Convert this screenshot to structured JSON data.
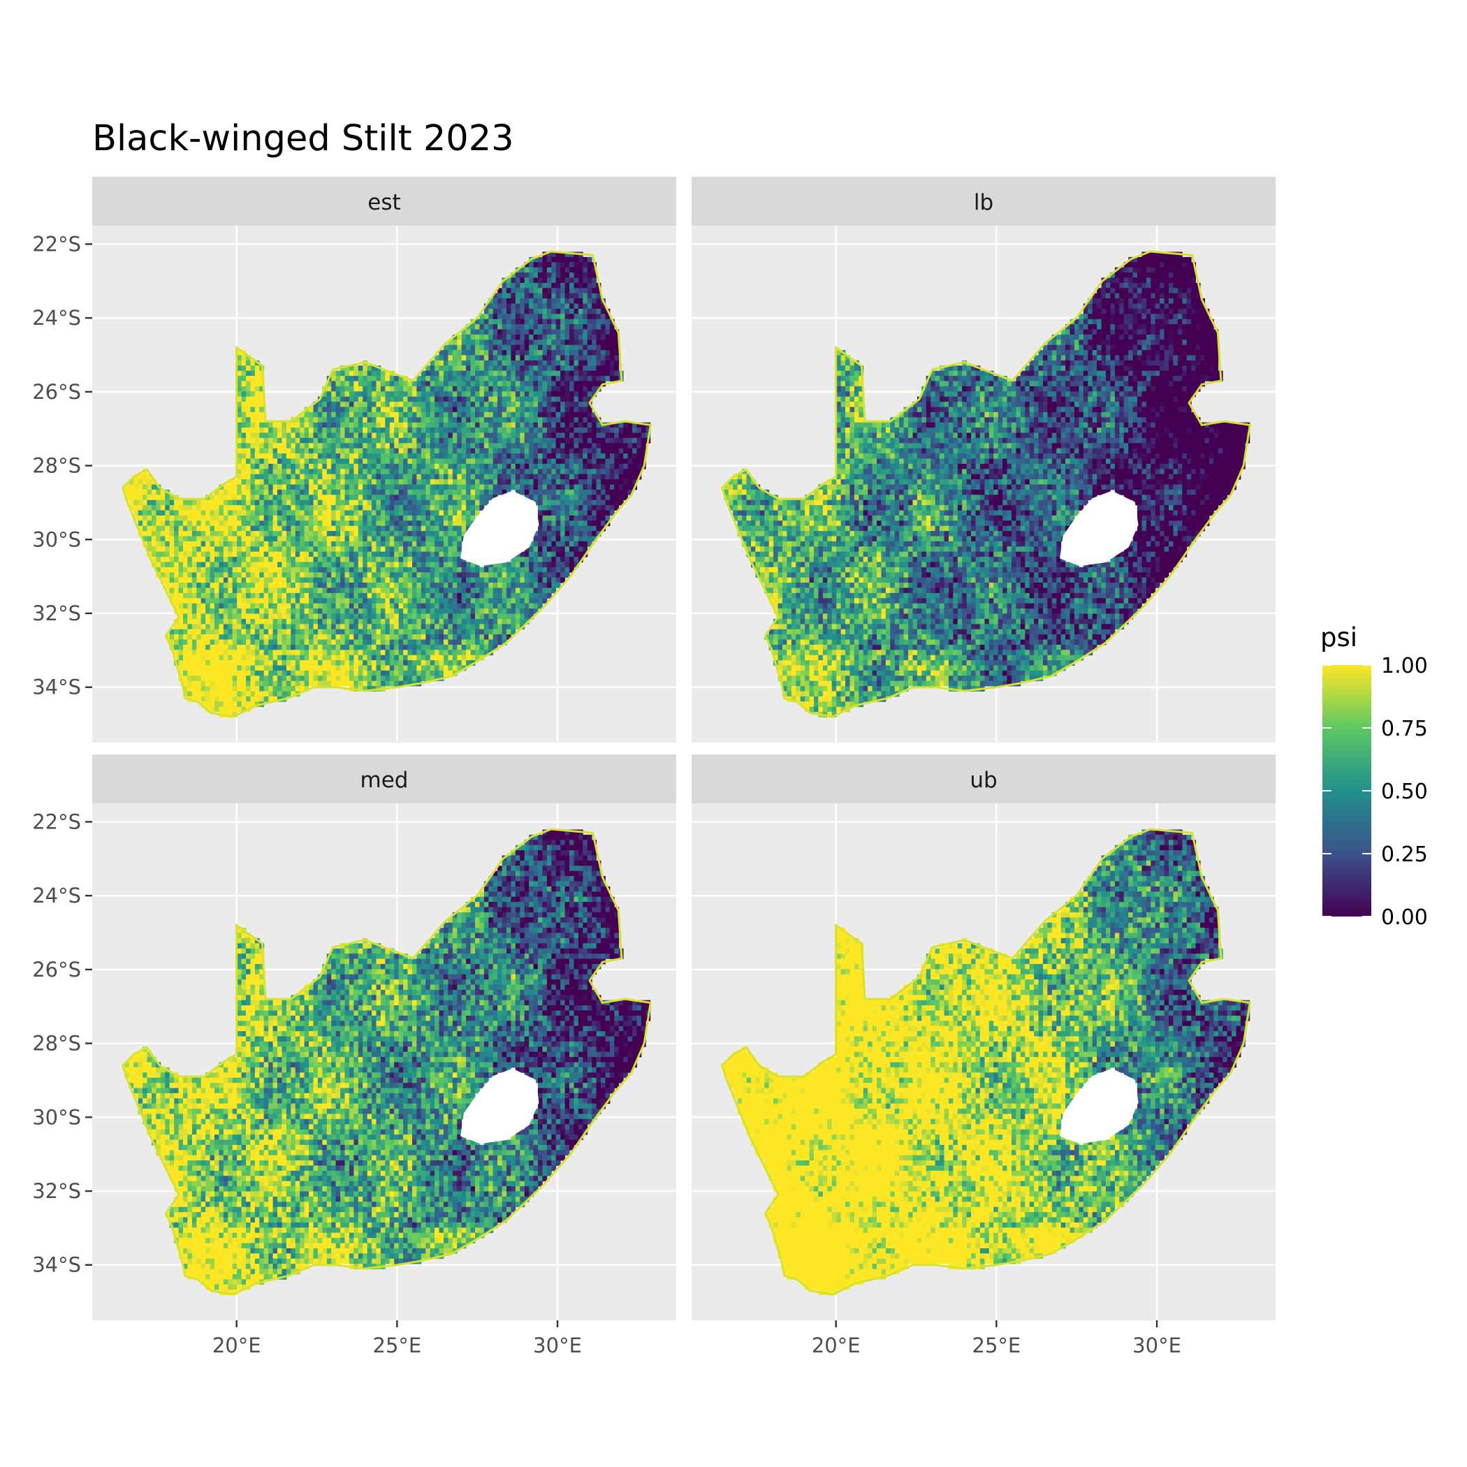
{
  "title": "Black-winged Stilt 2023",
  "chart_data": {
    "type": "heatmap",
    "title": "Black-winged Stilt 2023",
    "facets": [
      "est",
      "lb",
      "med",
      "ub"
    ],
    "x_ticks": [
      "20°E",
      "25°E",
      "30°E"
    ],
    "x_tick_values": [
      20,
      25,
      30
    ],
    "y_ticks": [
      "22°S",
      "24°S",
      "26°S",
      "28°S",
      "30°S",
      "32°S",
      "34°S"
    ],
    "y_tick_values": [
      -22,
      -24,
      -26,
      -28,
      -30,
      -32,
      -34
    ],
    "xlim": [
      15.5,
      33.7
    ],
    "ylim": [
      -35.5,
      -21.5
    ],
    "grid": true,
    "legend": {
      "title": "psi",
      "position": "right",
      "labels": [
        "1.00",
        "0.75",
        "0.50",
        "0.25",
        "0.00"
      ],
      "values": [
        1.0,
        0.75,
        0.5,
        0.25,
        0.0
      ],
      "colors": [
        "#440154",
        "#3B528B",
        "#21908C",
        "#5DC863",
        "#FDE725"
      ]
    },
    "panel_background": "#EBEBEB",
    "strip_background": "#D9D9D9",
    "facet_offsets": {
      "est": 0.0,
      "lb": -0.22,
      "med": -0.04,
      "ub": 0.2
    },
    "region_outline_lonlat": [
      [
        16.45,
        -28.6
      ],
      [
        16.8,
        -28.3
      ],
      [
        17.2,
        -28.1
      ],
      [
        17.6,
        -28.6
      ],
      [
        18.2,
        -28.9
      ],
      [
        19.0,
        -28.9
      ],
      [
        19.6,
        -28.5
      ],
      [
        20.0,
        -28.3
      ],
      [
        20.0,
        -24.8
      ],
      [
        20.8,
        -25.3
      ],
      [
        20.9,
        -26.8
      ],
      [
        21.7,
        -26.8
      ],
      [
        22.6,
        -26.2
      ],
      [
        23.0,
        -25.4
      ],
      [
        24.0,
        -25.2
      ],
      [
        25.5,
        -25.7
      ],
      [
        26.5,
        -24.7
      ],
      [
        27.5,
        -24.0
      ],
      [
        28.3,
        -23.0
      ],
      [
        29.2,
        -22.4
      ],
      [
        29.8,
        -22.2
      ],
      [
        31.1,
        -22.3
      ],
      [
        31.4,
        -23.5
      ],
      [
        31.9,
        -24.4
      ],
      [
        32.0,
        -25.7
      ],
      [
        31.4,
        -25.8
      ],
      [
        31.0,
        -26.3
      ],
      [
        31.4,
        -26.9
      ],
      [
        32.1,
        -26.8
      ],
      [
        32.9,
        -26.9
      ],
      [
        32.7,
        -28.0
      ],
      [
        32.3,
        -28.8
      ],
      [
        31.8,
        -29.3
      ],
      [
        31.2,
        -30.0
      ],
      [
        30.4,
        -31.0
      ],
      [
        29.6,
        -31.8
      ],
      [
        28.4,
        -32.8
      ],
      [
        27.5,
        -33.3
      ],
      [
        26.7,
        -33.7
      ],
      [
        25.7,
        -33.9
      ],
      [
        25.0,
        -34.0
      ],
      [
        24.0,
        -34.1
      ],
      [
        23.1,
        -34.0
      ],
      [
        22.4,
        -34.0
      ],
      [
        21.6,
        -34.3
      ],
      [
        20.6,
        -34.5
      ],
      [
        19.9,
        -34.8
      ],
      [
        19.2,
        -34.7
      ],
      [
        18.8,
        -34.4
      ],
      [
        18.4,
        -34.3
      ],
      [
        18.3,
        -33.9
      ],
      [
        18.0,
        -33.0
      ],
      [
        17.8,
        -32.6
      ],
      [
        18.2,
        -32.1
      ],
      [
        17.3,
        -30.5
      ],
      [
        16.6,
        -29.0
      ]
    ],
    "excluded_outline_lonlat": [
      [
        27.0,
        -30.5
      ],
      [
        27.1,
        -29.9
      ],
      [
        27.5,
        -29.4
      ],
      [
        28.0,
        -28.9
      ],
      [
        28.6,
        -28.7
      ],
      [
        29.3,
        -29.0
      ],
      [
        29.4,
        -29.6
      ],
      [
        29.1,
        -30.2
      ],
      [
        28.4,
        -30.6
      ],
      [
        27.6,
        -30.7
      ]
    ]
  }
}
